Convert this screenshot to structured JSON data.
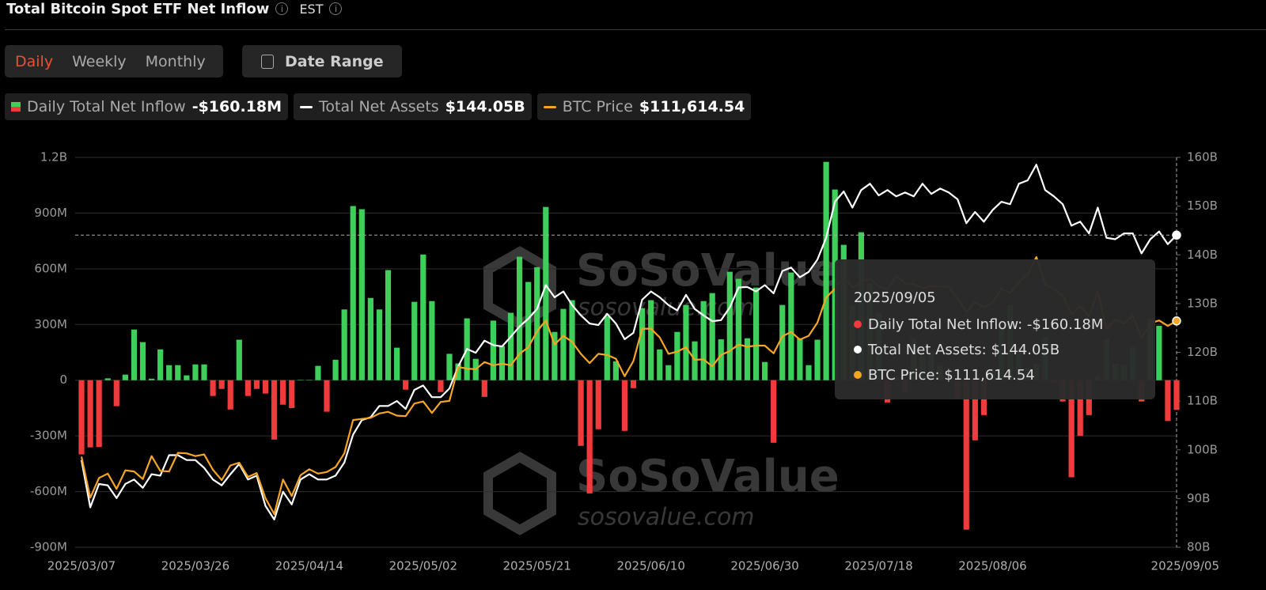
{
  "header": {
    "title": "Total Bitcoin Spot ETF Net Inflow",
    "timezone": "EST"
  },
  "controls": {
    "tabs": [
      "Daily",
      "Weekly",
      "Monthly"
    ],
    "date_range": "Date Range"
  },
  "watermark": {
    "brand": "SoSoValue",
    "url": "sosovalue.com"
  },
  "chart_data": {
    "type": "bar",
    "categories": [
      "2025/03/07",
      null,
      null,
      null,
      null,
      null,
      null,
      null,
      null,
      null,
      null,
      null,
      null,
      "2025/03/26",
      null,
      null,
      null,
      null,
      null,
      null,
      null,
      null,
      null,
      null,
      null,
      null,
      "2025/04/14",
      null,
      null,
      null,
      null,
      null,
      null,
      null,
      null,
      null,
      null,
      null,
      null,
      "2025/05/02",
      null,
      null,
      null,
      null,
      null,
      null,
      null,
      null,
      null,
      null,
      null,
      null,
      "2025/05/21",
      null,
      null,
      null,
      null,
      null,
      null,
      null,
      null,
      null,
      null,
      null,
      null,
      "2025/06/10",
      null,
      null,
      null,
      null,
      null,
      null,
      null,
      null,
      null,
      null,
      null,
      null,
      "2025/06/30",
      null,
      null,
      null,
      null,
      null,
      null,
      null,
      null,
      null,
      null,
      null,
      null,
      "2025/07/18",
      null,
      null,
      null,
      null,
      null,
      null,
      null,
      null,
      null,
      null,
      null,
      null,
      "2025/08/06",
      null,
      null,
      null,
      null,
      null,
      null,
      null,
      null,
      null,
      null,
      null,
      null,
      null,
      null,
      null,
      null,
      null,
      null,
      null,
      null,
      "2025/09/05"
    ],
    "series": [
      {
        "name": "Daily Total Net Inflow",
        "type": "bar",
        "axis": "y",
        "color": "#3ecf5a",
        "negative_color": "#ef3b3b",
        "values": [
          -400,
          -362,
          -360,
          10,
          -140,
          30,
          273,
          205,
          8,
          166,
          81,
          81,
          26,
          85,
          85,
          -85,
          -47,
          -158,
          218,
          -85,
          -47,
          -72,
          -320,
          -132,
          -150,
          2,
          1,
          77,
          -170,
          110,
          381,
          938,
          921,
          443,
          381,
          593,
          175,
          -51,
          422,
          677,
          426,
          -64,
          142,
          90,
          333,
          115,
          -90,
          321,
          184,
          363,
          665,
          529,
          609,
          933,
          260,
          384,
          431,
          -354,
          -610,
          -264,
          346,
          102,
          -273,
          -43,
          388,
          431,
          166,
          81,
          260,
          405,
          209,
          426,
          469,
          220,
          584,
          546,
          226,
          499,
          98,
          -337,
          405,
          580,
          226,
          81,
          218,
          1176,
          1027,
          729,
          403,
          797,
          522,
          363,
          -120,
          20,
          -68,
          227,
          131,
          157,
          80,
          6,
          -100,
          -805,
          -324,
          -188,
          49,
          281,
          404,
          178,
          65,
          87,
          231,
          -14,
          -115,
          -523,
          -300,
          -188,
          23,
          219,
          88,
          81,
          179,
          -115,
          333,
          293,
          -220,
          -160.18
        ]
      },
      {
        "name": "Total Net Assets",
        "type": "line",
        "axis": "y2",
        "color": "#ffffff",
        "values": [
          97.9,
          88.2,
          93.0,
          92.7,
          90.1,
          93.0,
          93.9,
          92.2,
          95.0,
          94.7,
          98.9,
          98.9,
          97.9,
          97.9,
          96.3,
          93.9,
          92.7,
          95.0,
          97.1,
          93.9,
          94.7,
          88.5,
          85.7,
          91.4,
          88.8,
          93.9,
          95.0,
          93.9,
          93.9,
          94.7,
          97.4,
          103.1,
          106.1,
          106.7,
          109.0,
          109.0,
          110.0,
          108.4,
          112.3,
          113.2,
          110.8,
          110.8,
          112.6,
          117.1,
          120.7,
          119.9,
          122.4,
          121.5,
          121.2,
          123.2,
          125.3,
          126.9,
          128.9,
          133.8,
          131.3,
          132.5,
          129.7,
          127.6,
          125.9,
          125.6,
          127.9,
          125.9,
          122.7,
          124.0,
          130.8,
          132.5,
          131.3,
          129.7,
          128.6,
          131.8,
          128.9,
          127.6,
          126.4,
          126.6,
          129.2,
          133.3,
          133.4,
          132.5,
          133.8,
          132.1,
          136.7,
          137.4,
          135.4,
          136.5,
          139.0,
          143.5,
          150.9,
          153.0,
          149.7,
          153.3,
          154.6,
          152.2,
          153.3,
          152.0,
          152.8,
          152.0,
          154.6,
          152.5,
          153.6,
          152.8,
          151.4,
          146.5,
          148.8,
          146.8,
          149.2,
          150.9,
          150.4,
          154.6,
          155.3,
          158.5,
          153.3,
          152.0,
          150.4,
          146.0,
          146.8,
          144.4,
          149.7,
          143.5,
          143.2,
          144.4,
          144.4,
          140.3,
          143.2,
          144.8,
          142.2,
          144.05
        ]
      },
      {
        "name": "BTC Price",
        "type": "line",
        "color": "#f5a623",
        "values": [
          86800,
          79300,
          82900,
          83700,
          80900,
          84300,
          84100,
          82700,
          86900,
          84200,
          84100,
          87500,
          87400,
          86900,
          87200,
          84400,
          82500,
          85200,
          85700,
          83100,
          83800,
          79200,
          76300,
          82600,
          79600,
          83400,
          84500,
          83700,
          84000,
          84900,
          87400,
          93500,
          93700,
          93900,
          94700,
          95000,
          94300,
          94200,
          96500,
          96900,
          94800,
          96800,
          97000,
          103200,
          102900,
          102800,
          104100,
          103500,
          103800,
          103500,
          105600,
          106800,
          109700,
          111700,
          107300,
          108900,
          107800,
          105600,
          103900,
          105600,
          105400,
          104700,
          101500,
          104300,
          110200,
          110200,
          108600,
          105600,
          106000,
          106800,
          104500,
          104600,
          103300,
          105400,
          106100,
          107300,
          106900,
          107100,
          107100,
          105700,
          108800,
          109600,
          108200,
          108900,
          111300,
          115900,
          117500,
          119800,
          117700,
          118700,
          119400,
          117900,
          117400,
          119900,
          118500,
          118300,
          117600,
          118000,
          117900,
          117800,
          115700,
          113300,
          115000,
          114100,
          115000,
          117500,
          116700,
          118700,
          120100,
          123300,
          118300,
          117400,
          116300,
          112900,
          114300,
          112500,
          116900,
          110100,
          111800,
          111200,
          112600,
          108400,
          111200,
          111700,
          110700,
          111614.54
        ]
      }
    ],
    "legend_values": [
      "-$160.18M",
      "$144.05B",
      "$111,614.54"
    ],
    "tooltip_lines": [
      "Daily Total Net Inflow: -$160.18M",
      "Total Net Assets: $144.05B",
      "BTC Price: $111,614.54"
    ],
    "ylim": [
      -900,
      1200
    ],
    "yticks": [
      {
        "value": 1200,
        "label": "1.2B"
      },
      {
        "value": 900,
        "label": "900M"
      },
      {
        "value": 600,
        "label": "600M"
      },
      {
        "value": 300,
        "label": "300M"
      },
      0,
      {
        "value": -300,
        "label": "-300M"
      },
      {
        "value": -600,
        "label": "-600M"
      },
      {
        "value": -900,
        "label": "-900M"
      }
    ],
    "y2lim": [
      80,
      160
    ],
    "y2ticks": [
      {
        "value": 160,
        "label": "160B"
      },
      {
        "value": 150,
        "label": "150B"
      },
      {
        "value": 140,
        "label": "140B"
      },
      {
        "value": 130,
        "label": "130B"
      },
      {
        "value": 120,
        "label": "120B"
      },
      {
        "value": 110,
        "label": "110B"
      },
      {
        "value": 100,
        "label": "100B"
      },
      {
        "value": 90,
        "label": "90B"
      },
      {
        "value": 80,
        "label": "80B"
      }
    ],
    "grid": true
  }
}
